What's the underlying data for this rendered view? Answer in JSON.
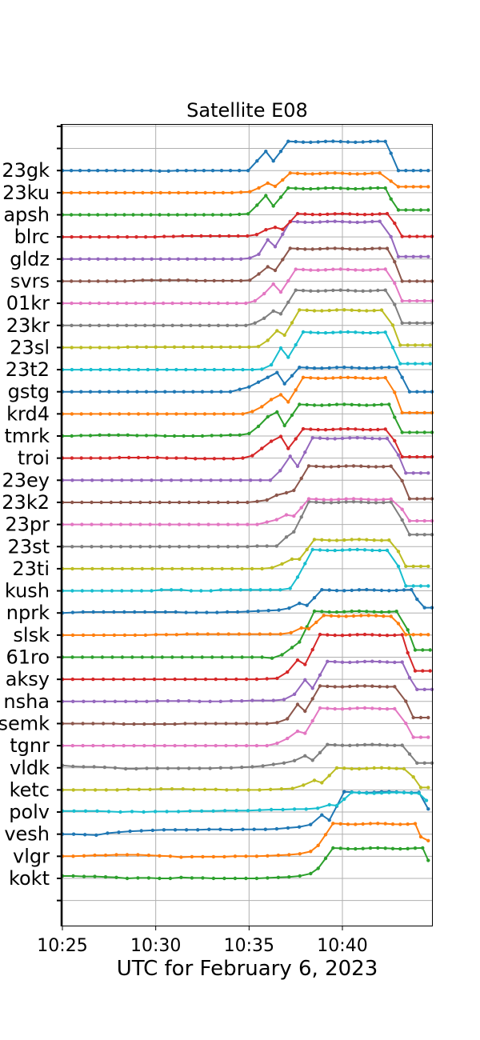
{
  "chart_data": {
    "type": "line",
    "title": "Satellite E08",
    "xlabel": "UTC for February 6, 2023",
    "ylabel": "",
    "x_tick_labels": [
      "10:25",
      "10:30",
      "10:35",
      "10:40"
    ],
    "x_ticks_min": [
      25,
      30,
      35,
      40
    ],
    "xlim_min": [
      25,
      44.8
    ],
    "grid": true,
    "colors": {
      "blue": "#1f77b4",
      "orange": "#ff7f0e",
      "green": "#2ca02c",
      "red": "#d62728",
      "purple": "#9467bd",
      "brown": "#8c564b",
      "pink": "#e377c2",
      "gray": "#7f7f7f",
      "olive": "#bcbd22",
      "cyan": "#17becf"
    },
    "series": [
      {
        "name": "kokt",
        "color": "#2ca02c",
        "pre": [
          0.1,
          0.1,
          0.08,
          0.08,
          0.06,
          0.04,
          0.0,
          0.02,
          0.02,
          0.0,
          0.0,
          0.04,
          0.02,
          0.02,
          0.0,
          0.0,
          0.0,
          0.0,
          0.0,
          0.02,
          0.04,
          0.06,
          0.1,
          0.2
        ],
        "rise": 38.3,
        "amp": 1.25,
        "fall": 44.6,
        "after": 0.68
      },
      {
        "name": "vlgr",
        "color": "#ff7f0e",
        "pre": [
          0.0,
          0.0,
          0.02,
          0.04,
          0.04,
          0.06,
          0.06,
          0.06,
          0.04,
          0.02,
          0.0,
          -0.04,
          -0.02,
          -0.02,
          -0.02,
          -0.02,
          0.0,
          0.0,
          0.0,
          0.02,
          0.04,
          0.06,
          0.1,
          0.2
        ],
        "rise": 38.3,
        "amp": 1.35,
        "fall": 44.2,
        "after": 0.65
      },
      {
        "name": "vesh",
        "color": "#1f77b4",
        "pre": [
          0.0,
          0.0,
          -0.02,
          -0.04,
          0.04,
          0.08,
          0.12,
          0.14,
          0.16,
          0.18,
          0.18,
          0.18,
          0.18,
          0.2,
          0.2,
          0.18,
          0.2,
          0.2,
          0.2,
          0.22,
          0.26,
          0.3,
          0.4,
          0.8
        ],
        "rise": 38.9,
        "amp": 1.75,
        "fall": 44.6,
        "after": 1.15
      },
      {
        "name": "polv",
        "color": "#17becf",
        "pre": [
          0.04,
          0.04,
          0.04,
          0.04,
          0.02,
          0.0,
          0.02,
          0.0,
          0.02,
          0.02,
          0.02,
          0.04,
          0.04,
          0.04,
          0.06,
          0.06,
          0.06,
          0.08,
          0.1,
          0.1,
          0.12,
          0.12,
          0.16,
          0.3
        ],
        "rise": 39.3,
        "amp": 0.8,
        "fall": 44.5,
        "after": 0.55
      },
      {
        "name": "ketc",
        "color": "#bcbd22",
        "pre": [
          0.0,
          0.0,
          0.0,
          0.0,
          0.0,
          0.0,
          0.02,
          0.02,
          0.02,
          0.04,
          0.04,
          0.04,
          0.02,
          0.02,
          0.02,
          0.0,
          0.0,
          0.0,
          0.0,
          0.02,
          0.04,
          0.06,
          0.2,
          0.4
        ],
        "rise": 38.5,
        "amp": 0.9,
        "fall": 43.8,
        "after": 0.1
      },
      {
        "name": "vldk",
        "color": "#7f7f7f",
        "pre": [
          0.1,
          0.06,
          0.04,
          0.04,
          0.02,
          0.0,
          -0.04,
          -0.04,
          -0.02,
          -0.02,
          -0.02,
          -0.02,
          -0.02,
          -0.02,
          -0.02,
          0.0,
          0.0,
          0.02,
          0.04,
          0.08,
          0.14,
          0.2,
          0.3,
          0.5
        ],
        "rise": 38.0,
        "amp": 0.95,
        "fall": 43.6,
        "after": 0.2
      },
      {
        "name": "tgnr",
        "color": "#e377c2",
        "pre": [
          0.0,
          0.0,
          0.0,
          0.0,
          0.0,
          0.0,
          0.0,
          0.0,
          0.0,
          0.0,
          0.0,
          0.0,
          0.0,
          0.0,
          0.0,
          0.0,
          0.0,
          0.0,
          0.0,
          0.0,
          0.0,
          0.1,
          0.3,
          0.6
        ],
        "rise": 37.6,
        "amp": 1.55,
        "fall": 43.4,
        "after": 0.35
      },
      {
        "name": "semk",
        "color": "#8c564b",
        "pre": [
          0.0,
          0.0,
          0.0,
          0.0,
          0.0,
          0.0,
          -0.02,
          -0.02,
          -0.02,
          -0.02,
          -0.02,
          -0.02,
          0.0,
          0.0,
          0.0,
          0.0,
          0.0,
          0.0,
          0.0,
          0.0,
          0.0,
          0.04,
          0.2,
          0.8
        ],
        "rise": 37.6,
        "amp": 1.55,
        "fall": 43.4,
        "after": 0.25
      },
      {
        "name": "nsha",
        "color": "#9467bd",
        "pre": [
          0.0,
          0.0,
          0.0,
          0.0,
          0.0,
          0.0,
          0.0,
          0.0,
          0.0,
          0.02,
          0.02,
          0.02,
          0.02,
          0.0,
          0.0,
          0.0,
          0.02,
          0.02,
          0.04,
          0.04,
          0.04,
          0.08,
          0.3,
          0.9
        ],
        "rise": 38.0,
        "amp": 1.65,
        "fall": 43.6,
        "after": 0.5
      },
      {
        "name": "aksy",
        "color": "#d62728",
        "pre": [
          0.0,
          0.0,
          0.0,
          0.0,
          0.0,
          0.0,
          0.0,
          0.0,
          0.0,
          0.0,
          0.0,
          0.0,
          0.0,
          0.0,
          0.0,
          0.0,
          0.0,
          0.0,
          0.0,
          0.0,
          0.02,
          0.04,
          0.3,
          0.8
        ],
        "rise": 37.6,
        "amp": 1.85,
        "fall": 43.5,
        "after": 0.35
      },
      {
        "name": "61ro",
        "color": "#2ca02c",
        "pre": [
          0.0,
          0.0,
          0.0,
          0.0,
          0.0,
          0.0,
          0.0,
          0.0,
          0.0,
          0.0,
          0.0,
          0.0,
          0.0,
          0.0,
          0.0,
          0.0,
          0.0,
          0.0,
          0.0,
          0.0,
          0.0,
          -0.04,
          0.1,
          0.4
        ],
        "rise": 37.3,
        "amp": 1.9,
        "fall": 43.5,
        "after": 0.3
      },
      {
        "name": "slsk",
        "color": "#ff7f0e",
        "pre": [
          0.0,
          0.0,
          0.0,
          0.0,
          0.0,
          0.0,
          0.0,
          0.0,
          0.0,
          0.02,
          0.02,
          0.02,
          0.04,
          0.04,
          0.04,
          0.04,
          0.04,
          0.04,
          0.04,
          0.04,
          0.04,
          0.04,
          0.1,
          0.3
        ],
        "rise": 37.8,
        "amp": 0.8,
        "fall": 43.0,
        "after": 0.02
      },
      {
        "name": "nprk",
        "color": "#1f77b4",
        "pre": [
          0.0,
          0.02,
          0.04,
          0.04,
          0.04,
          0.04,
          0.04,
          0.04,
          0.04,
          0.04,
          0.04,
          0.04,
          0.02,
          0.02,
          0.02,
          0.02,
          0.04,
          0.04,
          0.06,
          0.08,
          0.1,
          0.12,
          0.2,
          0.4
        ],
        "rise": 37.7,
        "amp": 0.95,
        "fall": 44.0,
        "after": 0.22
      },
      {
        "name": "kush",
        "color": "#17becf",
        "pre": [
          0.0,
          0.0,
          0.0,
          0.0,
          0.0,
          0.0,
          0.0,
          0.0,
          0.0,
          0.0,
          0.04,
          0.04,
          0.04,
          0.0,
          0.0,
          0.0,
          0.04,
          0.04,
          0.04,
          0.04,
          0.04,
          0.04,
          0.04,
          0.1
        ],
        "rise": 37.2,
        "amp": 1.7,
        "fall": 43.0,
        "after": 0.2
      },
      {
        "name": "23ti",
        "color": "#bcbd22",
        "pre": [
          0.0,
          0.0,
          0.0,
          0.0,
          0.0,
          0.0,
          0.0,
          0.0,
          0.0,
          0.0,
          0.0,
          0.0,
          0.0,
          0.0,
          0.0,
          0.0,
          0.0,
          0.0,
          0.0,
          0.0,
          0.0,
          0.04,
          0.2,
          0.4
        ],
        "rise": 37.3,
        "amp": 1.2,
        "fall": 43.0,
        "after": 0.1
      },
      {
        "name": "23st",
        "color": "#7f7f7f",
        "pre": [
          0.0,
          0.0,
          0.0,
          0.0,
          0.0,
          0.0,
          0.0,
          0.0,
          0.0,
          0.0,
          0.0,
          0.0,
          0.0,
          0.0,
          0.0,
          0.0,
          0.0,
          0.0,
          0.0,
          0.0,
          0.02,
          0.02,
          0.02,
          0.4
        ],
        "rise": 37.0,
        "amp": 1.85,
        "fall": 43.2,
        "after": 0.5
      },
      {
        "name": "23pr",
        "color": "#e377c2",
        "pre": [
          0.0,
          0.0,
          0.0,
          0.0,
          0.0,
          0.0,
          0.0,
          0.0,
          0.0,
          0.0,
          0.0,
          0.0,
          0.0,
          0.0,
          0.0,
          0.0,
          0.0,
          0.0,
          0.0,
          0.0,
          0.0,
          0.1,
          0.2,
          0.4
        ],
        "rise": 37.0,
        "amp": 1.05,
        "fall": 43.2,
        "after": 0.15
      },
      {
        "name": "23k2",
        "color": "#8c564b",
        "pre": [
          0.0,
          0.0,
          0.0,
          0.0,
          0.0,
          0.0,
          0.0,
          0.0,
          0.0,
          0.0,
          0.0,
          0.0,
          0.0,
          0.0,
          0.0,
          0.0,
          0.0,
          0.0,
          0.0,
          0.0,
          0.04,
          0.1,
          0.3,
          0.4
        ],
        "rise": 37.0,
        "amp": 1.5,
        "fall": 43.2,
        "after": 0.15
      },
      {
        "name": "23ey",
        "color": "#9467bd",
        "pre": [
          0.0,
          0.0,
          0.0,
          0.0,
          0.0,
          0.0,
          0.0,
          0.0,
          0.0,
          0.0,
          0.0,
          0.0,
          0.0,
          0.0,
          0.0,
          0.0,
          0.0,
          0.0,
          0.0,
          0.0,
          0.0,
          0.0,
          0.4,
          1.0
        ],
        "rise": 37.2,
        "amp": 1.75,
        "fall": 43.0,
        "after": 0.3
      },
      {
        "name": "troi",
        "color": "#d62728",
        "pre": [
          0.0,
          0.0,
          0.0,
          0.0,
          0.0,
          0.0,
          0.02,
          0.02,
          0.02,
          0.02,
          0.02,
          0.0,
          0.0,
          0.0,
          -0.02,
          -0.02,
          -0.02,
          -0.02,
          -0.02,
          0.0,
          0.1,
          0.4,
          0.7,
          0.9
        ],
        "rise": 36.7,
        "amp": 1.2,
        "fall": 42.8,
        "after": 0.05
      },
      {
        "name": "tmrk",
        "color": "#2ca02c",
        "pre": [
          0.0,
          0.0,
          0.02,
          0.02,
          0.04,
          0.04,
          0.04,
          0.04,
          0.02,
          0.02,
          0.02,
          0.0,
          0.0,
          0.0,
          0.0,
          0.0,
          0.02,
          0.02,
          0.04,
          0.04,
          0.1,
          0.4,
          0.8,
          1.0
        ],
        "rise": 36.5,
        "amp": 1.3,
        "fall": 42.8,
        "after": 0.15
      },
      {
        "name": "krd4",
        "color": "#ff7f0e",
        "pre": [
          0.0,
          0.0,
          0.0,
          0.0,
          0.0,
          0.0,
          0.0,
          0.0,
          0.0,
          0.0,
          0.0,
          0.0,
          0.0,
          0.0,
          0.0,
          0.0,
          0.0,
          0.0,
          0.0,
          0.0,
          0.1,
          0.3,
          0.6,
          0.8
        ],
        "rise": 36.7,
        "amp": 1.5,
        "fall": 42.8,
        "after": 0.05
      },
      {
        "name": "gstg",
        "color": "#1f77b4",
        "pre": [
          0.0,
          0.0,
          0.0,
          0.0,
          0.0,
          0.0,
          0.0,
          0.0,
          0.0,
          0.0,
          0.0,
          0.0,
          0.0,
          0.0,
          0.0,
          0.0,
          0.0,
          0.0,
          0.0,
          0.1,
          0.2,
          0.4,
          0.6,
          0.8
        ],
        "rise": 36.5,
        "amp": 1.0,
        "fall": 43.2,
        "after": 0.0
      },
      {
        "name": "23t2",
        "color": "#17becf",
        "pre": [
          0.0,
          0.0,
          0.0,
          0.0,
          0.0,
          0.0,
          0.0,
          0.0,
          0.0,
          0.0,
          0.0,
          0.0,
          0.0,
          0.0,
          0.0,
          0.0,
          0.0,
          0.0,
          0.0,
          0.0,
          0.0,
          0.02,
          0.2,
          0.9
        ],
        "rise": 36.7,
        "amp": 1.55,
        "fall": 42.7,
        "after": 0.25
      },
      {
        "name": "23sl",
        "color": "#bcbd22",
        "pre": [
          0.0,
          0.0,
          0.0,
          0.0,
          0.0,
          0.0,
          0.0,
          0.02,
          0.02,
          0.02,
          0.02,
          0.02,
          0.02,
          0.02,
          0.02,
          0.02,
          0.02,
          0.02,
          0.02,
          0.02,
          0.02,
          0.04,
          0.3,
          0.7
        ],
        "rise": 36.5,
        "amp": 1.55,
        "fall": 42.7,
        "after": 0.1
      },
      {
        "name": "23kr",
        "color": "#7f7f7f",
        "pre": [
          0.0,
          0.0,
          0.0,
          0.0,
          0.0,
          0.0,
          0.0,
          0.0,
          0.0,
          0.0,
          0.0,
          0.0,
          0.0,
          0.0,
          0.0,
          0.0,
          0.0,
          0.0,
          0.0,
          0.0,
          0.0,
          0.1,
          0.3,
          0.6
        ],
        "rise": 36.3,
        "amp": 1.45,
        "fall": 42.8,
        "after": 0.1
      },
      {
        "name": "01kr",
        "color": "#e377c2",
        "pre": [
          0.0,
          0.0,
          0.0,
          0.0,
          0.0,
          0.0,
          0.0,
          0.0,
          0.0,
          0.0,
          0.0,
          0.0,
          0.0,
          0.0,
          0.0,
          0.0,
          0.0,
          0.0,
          0.0,
          0.0,
          0.0,
          0.1,
          0.4,
          0.8
        ],
        "rise": 36.3,
        "amp": 1.4,
        "fall": 42.8,
        "after": 0.1
      },
      {
        "name": "svrs",
        "color": "#8c564b",
        "pre": [
          0.0,
          0.0,
          0.0,
          0.0,
          0.0,
          0.0,
          0.0,
          0.0,
          0.02,
          0.04,
          0.04,
          0.04,
          0.04,
          0.04,
          0.04,
          0.02,
          0.02,
          0.02,
          0.02,
          0.02,
          0.02,
          0.04,
          0.3,
          0.6
        ],
        "rise": 36.0,
        "amp": 1.35,
        "fall": 42.8,
        "after": 0.0
      },
      {
        "name": "gldz",
        "color": "#9467bd",
        "pre": [
          0.0,
          0.0,
          0.0,
          0.0,
          0.0,
          0.0,
          0.0,
          0.0,
          0.0,
          0.0,
          0.0,
          0.0,
          0.0,
          0.0,
          0.0,
          0.0,
          0.0,
          0.0,
          0.0,
          0.0,
          0.0,
          0.04,
          0.2,
          0.8
        ],
        "rise": 36.0,
        "amp": 1.55,
        "fall": 42.6,
        "after": 0.1
      },
      {
        "name": "blrc",
        "color": "#d62728",
        "pre": [
          0.0,
          0.0,
          0.0,
          0.0,
          0.0,
          0.0,
          0.0,
          0.0,
          0.0,
          0.0,
          0.0,
          0.02,
          0.02,
          0.04,
          0.04,
          0.04,
          0.04,
          0.04,
          0.04,
          0.04,
          0.04,
          0.1,
          0.3,
          0.4
        ],
        "rise": 36.4,
        "amp": 0.95,
        "fall": 42.8,
        "after": 0.02
      },
      {
        "name": "apsh",
        "color": "#2ca02c",
        "pre": [
          0.0,
          0.0,
          0.0,
          0.0,
          0.0,
          0.0,
          0.0,
          0.0,
          0.0,
          0.0,
          0.0,
          0.0,
          0.0,
          0.0,
          0.0,
          0.0,
          0.0,
          0.0,
          0.0,
          0.0,
          0.02,
          0.04,
          0.4,
          0.8
        ],
        "rise": 35.9,
        "amp": 1.1,
        "fall": 42.6,
        "after": 0.2
      },
      {
        "name": "23ku",
        "color": "#ff7f0e",
        "pre": [
          0.0,
          0.0,
          0.0,
          0.0,
          0.0,
          0.0,
          0.0,
          0.0,
          0.0,
          0.0,
          0.0,
          0.0,
          0.0,
          0.0,
          0.0,
          0.0,
          0.0,
          0.0,
          0.0,
          0.0,
          0.02,
          0.04,
          0.2,
          0.4
        ],
        "rise": 36.0,
        "amp": 0.8,
        "fall": 42.6,
        "after": 0.25
      },
      {
        "name": "23gk",
        "color": "#1f77b4",
        "pre": [
          0.0,
          0.0,
          0.0,
          0.0,
          0.0,
          0.0,
          0.0,
          0.0,
          0.0,
          0.0,
          0.0,
          -0.02,
          -0.02,
          0.0,
          0.0,
          0.0,
          0.0,
          0.0,
          0.0,
          0.0,
          0.0,
          0.0,
          0.4,
          0.8
        ],
        "rise": 35.9,
        "amp": 1.2,
        "fall": 42.6,
        "after": 0.0
      }
    ]
  }
}
